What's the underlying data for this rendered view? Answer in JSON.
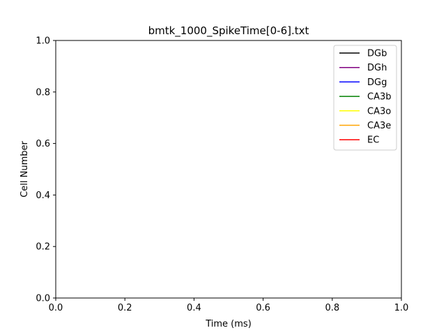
{
  "chart_data": {
    "type": "line",
    "title": "bmtk_1000_SpikeTime[0-6].txt",
    "xlabel": "Time (ms)",
    "ylabel": "Cell Number",
    "xlim": [
      0.0,
      1.0
    ],
    "ylim": [
      0.0,
      1.0
    ],
    "xticks": [
      "0.0",
      "0.2",
      "0.4",
      "0.6",
      "0.8",
      "1.0"
    ],
    "yticks": [
      "0.0",
      "0.2",
      "0.4",
      "0.6",
      "0.8",
      "1.0"
    ],
    "grid": false,
    "legend_position": "top-right",
    "series": [
      {
        "name": "DGb",
        "color": "#000000",
        "values": []
      },
      {
        "name": "DGh",
        "color": "#800080",
        "values": []
      },
      {
        "name": "DGg",
        "color": "#0000ff",
        "values": []
      },
      {
        "name": "CA3b",
        "color": "#008000",
        "values": []
      },
      {
        "name": "CA3o",
        "color": "#ffff00",
        "values": []
      },
      {
        "name": "CA3e",
        "color": "#ffa500",
        "values": []
      },
      {
        "name": "EC",
        "color": "#ff0000",
        "values": []
      }
    ]
  }
}
